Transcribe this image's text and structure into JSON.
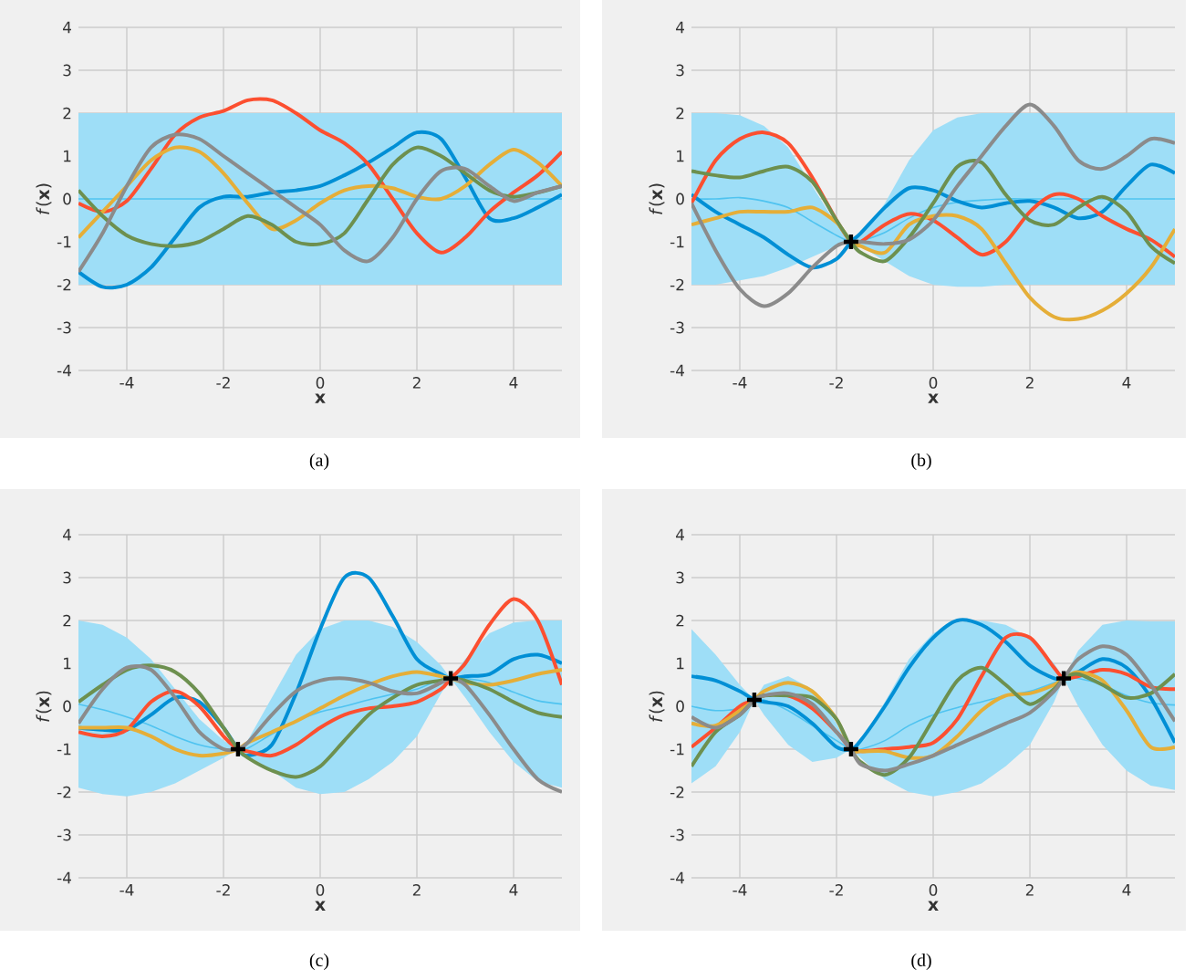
{
  "chart_data": [
    {
      "type": "line",
      "xlabel": "**x**",
      "ylabel": "*f*(**x**)",
      "xlim": [
        -5,
        5
      ],
      "ylim": [
        -4,
        4
      ],
      "xticks": [
        -4,
        -2,
        0,
        2,
        4
      ],
      "yticks": [
        -4,
        -3,
        -2,
        -1,
        0,
        1,
        2,
        3,
        4
      ],
      "grid": true,
      "annotations": [
        "(a)"
      ],
      "x": [
        -5,
        -4.5,
        -4,
        -3.5,
        -3,
        -2.5,
        -2,
        -1.5,
        -1,
        -0.5,
        0,
        0.5,
        1,
        1.5,
        2,
        2.5,
        3,
        3.5,
        4,
        4.5,
        5
      ],
      "series": [
        {
          "color": "#4fc3f0",
          "x": [
            -5,
            5
          ],
          "values": [
            0,
            0
          ],
          "lower": [
            -2,
            -2
          ],
          "upper": [
            2,
            2
          ]
        },
        {
          "color": "#008fd5",
          "values": [
            -1.7,
            -2.05,
            -2.0,
            -1.6,
            -0.9,
            -0.2,
            0.05,
            0.05,
            0.15,
            0.2,
            0.3,
            0.55,
            0.85,
            1.2,
            1.55,
            1.4,
            0.5,
            -0.45,
            -0.45,
            -0.2,
            0.1
          ]
        },
        {
          "color": "#fc4f30",
          "values": [
            -0.1,
            -0.3,
            -0.05,
            0.7,
            1.5,
            1.9,
            2.05,
            2.3,
            2.3,
            2.0,
            1.6,
            1.3,
            0.8,
            0.0,
            -0.8,
            -1.25,
            -0.9,
            -0.3,
            0.15,
            0.55,
            1.1
          ]
        },
        {
          "color": "#e5ae38",
          "values": [
            -0.9,
            -0.3,
            0.3,
            0.9,
            1.2,
            1.1,
            0.6,
            -0.1,
            -0.7,
            -0.5,
            -0.1,
            0.2,
            0.3,
            0.25,
            0.05,
            0.0,
            0.3,
            0.8,
            1.15,
            0.85,
            0.3
          ]
        },
        {
          "color": "#6d904f",
          "values": [
            0.2,
            -0.4,
            -0.85,
            -1.05,
            -1.1,
            -1.0,
            -0.7,
            -0.4,
            -0.6,
            -1.0,
            -1.05,
            -0.8,
            0.0,
            0.8,
            1.2,
            1.0,
            0.6,
            0.2,
            0.05,
            0.15,
            0.3
          ]
        },
        {
          "color": "#8b8b8b",
          "values": [
            -1.7,
            -0.8,
            0.3,
            1.2,
            1.5,
            1.4,
            1.0,
            0.6,
            0.2,
            -0.2,
            -0.6,
            -1.2,
            -1.45,
            -0.9,
            0.0,
            0.65,
            0.7,
            0.3,
            -0.05,
            0.15,
            0.3
          ]
        }
      ]
    },
    {
      "type": "line",
      "xlabel": "**x**",
      "ylabel": "*f*(**x**)",
      "xlim": [
        -5,
        5
      ],
      "ylim": [
        -4,
        4
      ],
      "xticks": [
        -4,
        -2,
        0,
        2,
        4
      ],
      "yticks": [
        -4,
        -3,
        -2,
        -1,
        0,
        1,
        2,
        3,
        4
      ],
      "grid": true,
      "annotations": [
        "(b)"
      ],
      "x": [
        -5,
        -4.5,
        -4,
        -3.5,
        -3,
        -2.5,
        -2,
        -1.7,
        -1.5,
        -1,
        -0.5,
        0,
        0.5,
        1,
        1.5,
        2,
        2.5,
        3,
        3.5,
        4,
        4.5,
        5
      ],
      "series": [
        {
          "color": "#4fc3f0",
          "values": [
            0,
            0,
            0.03,
            -0.05,
            -0.2,
            -0.53,
            -0.85,
            -1,
            -0.98,
            -0.78,
            -0.45,
            -0.2,
            -0.08,
            -0.03,
            0,
            0,
            0,
            0,
            0,
            0,
            0,
            0
          ],
          "lower": [
            -2,
            -2,
            -1.9,
            -1.8,
            -1.6,
            -1.35,
            -1.1,
            -1,
            -1.1,
            -1.45,
            -1.8,
            -2.0,
            -2.05,
            -2.05,
            -2,
            -2,
            -2,
            -2,
            -2,
            -2,
            -2,
            -2
          ],
          "upper": [
            2,
            2,
            1.95,
            1.7,
            1.2,
            0.3,
            -0.6,
            -1,
            -0.85,
            -0.1,
            0.9,
            1.6,
            1.9,
            2.0,
            2,
            2,
            2,
            2,
            2,
            2,
            2,
            2
          ]
        },
        {
          "color": "#008fd5",
          "values": [
            0.1,
            -0.3,
            -0.6,
            -0.9,
            -1.3,
            -1.6,
            -1.4,
            -1,
            -0.8,
            -0.2,
            0.25,
            0.2,
            -0.05,
            -0.2,
            -0.1,
            -0.05,
            -0.2,
            -0.45,
            -0.3,
            0.3,
            0.8,
            0.6
          ]
        },
        {
          "color": "#fc4f30",
          "values": [
            -0.1,
            0.9,
            1.4,
            1.55,
            1.3,
            0.5,
            -0.5,
            -1,
            -1.0,
            -0.6,
            -0.35,
            -0.5,
            -0.9,
            -1.3,
            -1.0,
            -0.3,
            0.1,
            0.0,
            -0.4,
            -0.7,
            -0.95,
            -1.35
          ]
        },
        {
          "color": "#e5ae38",
          "values": [
            -0.6,
            -0.45,
            -0.3,
            -0.3,
            -0.3,
            -0.2,
            -0.55,
            -1,
            -1.1,
            -1.25,
            -0.6,
            -0.4,
            -0.4,
            -0.7,
            -1.5,
            -2.3,
            -2.75,
            -2.8,
            -2.6,
            -2.2,
            -1.6,
            -0.7
          ]
        },
        {
          "color": "#6d904f",
          "values": [
            0.65,
            0.55,
            0.5,
            0.65,
            0.75,
            0.4,
            -0.5,
            -1,
            -1.25,
            -1.45,
            -0.9,
            -0.1,
            0.75,
            0.85,
            0.1,
            -0.5,
            -0.6,
            -0.2,
            0.05,
            -0.3,
            -1.1,
            -1.5
          ]
        },
        {
          "color": "#8b8b8b",
          "values": [
            -0.1,
            -1.2,
            -2.1,
            -2.5,
            -2.2,
            -1.6,
            -1.1,
            -1,
            -1.0,
            -1.05,
            -0.95,
            -0.5,
            0.3,
            1.0,
            1.7,
            2.2,
            1.7,
            0.9,
            0.7,
            1.0,
            1.4,
            1.3
          ]
        },
        {
          "type": "scatter",
          "marker": "cross",
          "color": "#000000",
          "x": [
            -1.7
          ],
          "values": [
            -1
          ]
        }
      ]
    },
    {
      "type": "line",
      "xlabel": "**x**",
      "ylabel": "*f*(**x**)",
      "xlim": [
        -5,
        5
      ],
      "ylim": [
        -4,
        4
      ],
      "xticks": [
        -4,
        -2,
        0,
        2,
        4
      ],
      "yticks": [
        -4,
        -3,
        -2,
        -1,
        0,
        1,
        2,
        3,
        4
      ],
      "grid": true,
      "annotations": [
        "(c)"
      ],
      "x": [
        -5,
        -4.5,
        -4,
        -3.5,
        -3,
        -2.5,
        -2,
        -1.7,
        -1.5,
        -1,
        -0.5,
        0,
        0.5,
        1,
        1.5,
        2,
        2.5,
        2.7,
        3,
        3.5,
        4,
        4.5,
        5
      ],
      "series": [
        {
          "color": "#4fc3f0",
          "values": [
            0.05,
            -0.08,
            -0.25,
            -0.45,
            -0.7,
            -0.9,
            -1.0,
            -1,
            -0.98,
            -0.65,
            -0.35,
            -0.13,
            0,
            0.15,
            0.28,
            0.4,
            0.63,
            0.65,
            0.65,
            0.55,
            0.33,
            0.13,
            0.05
          ],
          "lower": [
            -1.9,
            -2.05,
            -2.1,
            -2.0,
            -1.8,
            -1.5,
            -1.2,
            -1,
            -1.15,
            -1.5,
            -1.9,
            -2.05,
            -2.0,
            -1.7,
            -1.3,
            -0.7,
            0.3,
            0.65,
            0.2,
            -0.6,
            -1.3,
            -1.75,
            -1.9
          ],
          "upper": [
            2.0,
            1.9,
            1.6,
            1.1,
            0.4,
            -0.3,
            -0.8,
            -1,
            -0.8,
            0.2,
            1.2,
            1.8,
            2.0,
            2.0,
            1.85,
            1.5,
            0.95,
            0.65,
            1.1,
            1.7,
            1.95,
            2.0,
            2.0
          ]
        },
        {
          "color": "#008fd5",
          "values": [
            -0.5,
            -0.55,
            -0.55,
            -0.2,
            0.2,
            0.1,
            -0.5,
            -1,
            -1.15,
            -0.9,
            0.3,
            1.8,
            3.0,
            3.0,
            2.1,
            1.1,
            0.75,
            0.65,
            0.7,
            0.75,
            1.1,
            1.2,
            1.0
          ]
        },
        {
          "color": "#fc4f30",
          "values": [
            -0.6,
            -0.7,
            -0.55,
            0.1,
            0.35,
            0.0,
            -0.7,
            -1,
            -1.05,
            -1.15,
            -0.9,
            -0.5,
            -0.2,
            -0.05,
            0.0,
            0.1,
            0.4,
            0.65,
            1.0,
            1.9,
            2.5,
            2.0,
            0.5
          ]
        },
        {
          "color": "#e5ae38",
          "values": [
            -0.5,
            -0.5,
            -0.5,
            -0.7,
            -1.0,
            -1.15,
            -1.1,
            -1,
            -0.85,
            -0.6,
            -0.35,
            -0.05,
            0.25,
            0.5,
            0.7,
            0.8,
            0.7,
            0.65,
            0.55,
            0.5,
            0.6,
            0.75,
            0.85
          ]
        },
        {
          "color": "#6d904f",
          "values": [
            0.1,
            0.5,
            0.85,
            0.95,
            0.8,
            0.3,
            -0.5,
            -1,
            -1.2,
            -1.5,
            -1.65,
            -1.4,
            -0.8,
            -0.2,
            0.2,
            0.5,
            0.6,
            0.65,
            0.6,
            0.4,
            0.1,
            -0.15,
            -0.25
          ]
        },
        {
          "color": "#8b8b8b",
          "values": [
            -0.4,
            0.4,
            0.9,
            0.85,
            0.2,
            -0.6,
            -1.0,
            -1,
            -0.85,
            -0.2,
            0.35,
            0.6,
            0.65,
            0.55,
            0.35,
            0.3,
            0.55,
            0.65,
            0.5,
            -0.2,
            -1.0,
            -1.7,
            -2.0
          ]
        },
        {
          "type": "scatter",
          "marker": "cross",
          "color": "#000000",
          "x": [
            -1.7,
            2.7
          ],
          "values": [
            -1,
            0.65
          ]
        }
      ]
    },
    {
      "type": "line",
      "xlabel": "**x**",
      "ylabel": "*f*(**x**)",
      "xlim": [
        -5,
        5
      ],
      "ylim": [
        -4,
        4
      ],
      "xticks": [
        -4,
        -2,
        0,
        2,
        4
      ],
      "yticks": [
        -4,
        -3,
        -2,
        -1,
        0,
        1,
        2,
        3,
        4
      ],
      "grid": true,
      "annotations": [
        "(d)"
      ],
      "x": [
        -5,
        -4.5,
        -4,
        -3.7,
        -3.5,
        -3,
        -2.5,
        -2,
        -1.7,
        -1.5,
        -1,
        -0.5,
        0,
        0.5,
        1,
        1.5,
        2,
        2.5,
        2.7,
        3,
        3.5,
        4,
        4.5,
        5
      ],
      "series": [
        {
          "color": "#4fc3f0",
          "values": [
            0,
            -0.1,
            -0.05,
            0.15,
            0.15,
            -0.1,
            -0.45,
            -0.8,
            -1,
            -1.0,
            -0.8,
            -0.45,
            -0.2,
            -0.03,
            0.1,
            0.25,
            0.35,
            0.55,
            0.65,
            0.65,
            0.5,
            0.25,
            0.08,
            0.03
          ],
          "lower": [
            -1.8,
            -1.4,
            -0.6,
            0.15,
            -0.2,
            -0.9,
            -1.3,
            -1.2,
            -1,
            -1.2,
            -1.7,
            -2.0,
            -2.1,
            -2.0,
            -1.8,
            -1.4,
            -0.9,
            0.1,
            0.65,
            0.0,
            -0.9,
            -1.5,
            -1.85,
            -1.95
          ],
          "upper": [
            1.8,
            1.2,
            0.5,
            0.15,
            0.5,
            0.7,
            0.4,
            -0.4,
            -1,
            -0.8,
            0.1,
            1.1,
            1.7,
            1.95,
            2.0,
            1.9,
            1.6,
            1.0,
            0.65,
            1.3,
            1.9,
            2.0,
            1.98,
            1.98
          ]
        },
        {
          "color": "#008fd5",
          "values": [
            0.7,
            0.6,
            0.35,
            0.15,
            0.1,
            0.0,
            -0.4,
            -0.95,
            -1,
            -0.8,
            0.0,
            0.9,
            1.6,
            2.0,
            1.9,
            1.5,
            0.95,
            0.65,
            0.65,
            0.8,
            1.1,
            0.9,
            0.2,
            -0.85
          ]
        },
        {
          "color": "#fc4f30",
          "values": [
            -0.95,
            -0.5,
            0.0,
            0.15,
            0.25,
            0.25,
            -0.05,
            -0.6,
            -1,
            -1.05,
            -1.0,
            -0.95,
            -0.85,
            -0.3,
            0.7,
            1.6,
            1.6,
            0.9,
            0.65,
            0.7,
            0.85,
            0.75,
            0.45,
            0.4
          ]
        },
        {
          "color": "#e5ae38",
          "values": [
            -0.4,
            -0.45,
            -0.1,
            0.15,
            0.35,
            0.55,
            0.35,
            -0.3,
            -1,
            -1.05,
            -1.05,
            -1.2,
            -1.15,
            -0.7,
            -0.1,
            0.25,
            0.3,
            0.5,
            0.65,
            0.8,
            0.6,
            -0.1,
            -0.95,
            -0.95
          ]
        },
        {
          "color": "#6d904f",
          "values": [
            -1.4,
            -0.6,
            -0.2,
            0.15,
            0.25,
            0.25,
            0.2,
            -0.3,
            -1,
            -1.3,
            -1.6,
            -1.2,
            -0.3,
            0.6,
            0.9,
            0.5,
            0.05,
            0.4,
            0.65,
            0.75,
            0.5,
            0.2,
            0.3,
            0.75
          ]
        },
        {
          "color": "#8b8b8b",
          "values": [
            -0.25,
            -0.5,
            -0.2,
            0.15,
            0.25,
            0.3,
            0.05,
            -0.6,
            -1,
            -1.35,
            -1.5,
            -1.35,
            -1.15,
            -0.9,
            -0.65,
            -0.4,
            -0.15,
            0.35,
            0.65,
            1.1,
            1.4,
            1.2,
            0.5,
            -0.35
          ]
        },
        {
          "type": "scatter",
          "marker": "cross",
          "color": "#000000",
          "x": [
            -3.7,
            -1.7,
            2.7
          ],
          "values": [
            0.15,
            -1,
            0.65
          ]
        }
      ]
    }
  ]
}
